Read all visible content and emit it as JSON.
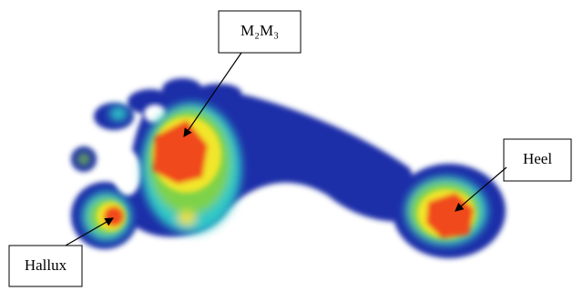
{
  "labels": {
    "m2m3": "M₂M₃",
    "heel": "Heel",
    "hallux": "Hallux"
  }
}
